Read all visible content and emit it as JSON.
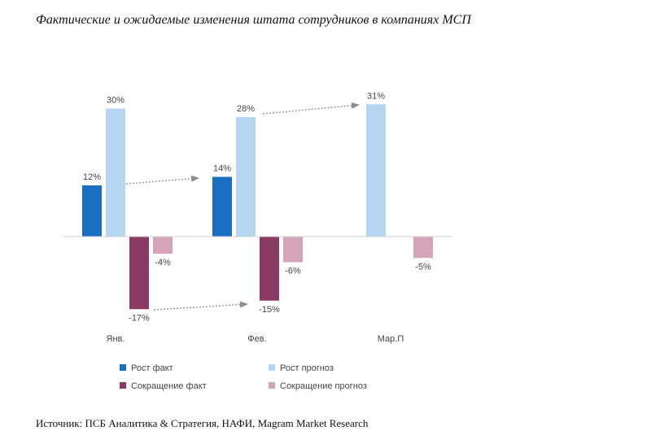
{
  "title": "Фактические и ожидаемые изменения штата сотрудников в компаниях МСП",
  "source": "Источник: ПСБ Аналитика & Стратегия, НАФИ, Magram Market Research",
  "chart_data": {
    "type": "bar",
    "categories": [
      "Янв.",
      "Фев.",
      "Мар.П"
    ],
    "series": [
      {
        "name": "Рост факт",
        "color": "#1a6fc0",
        "values": [
          12,
          14,
          null
        ]
      },
      {
        "name": "Рост прогноз",
        "color": "#b5d6ef",
        "values": [
          30,
          28,
          31
        ]
      },
      {
        "name": "Сокращение факт",
        "color": "#8b3a64",
        "values": [
          -17,
          -15,
          null
        ]
      },
      {
        "name": "Сокращение прогноз",
        "color": "#d4a5b8",
        "values": [
          -4,
          -6,
          -5
        ]
      }
    ],
    "value_labels": {
      "Рост факт": [
        "12%",
        "14%",
        null
      ],
      "Рост прогноз": [
        "30%",
        "28%",
        "31%"
      ],
      "Сокращение факт": [
        "-17%",
        "-15%",
        null
      ],
      "Сокращение прогноз": [
        "-4%",
        "-6%",
        "-5%"
      ]
    },
    "legend_position": "bottom-left",
    "grid": false,
    "arrows": [
      {
        "from": [
          "Янв.",
          "Рост факт"
        ],
        "to": "Фев."
      },
      {
        "from": [
          "Фев.",
          "Рост прогноз"
        ],
        "to": "Мар.П"
      },
      {
        "from": [
          "Янв.",
          "Сокращение факт"
        ],
        "to": "Фев."
      }
    ]
  }
}
